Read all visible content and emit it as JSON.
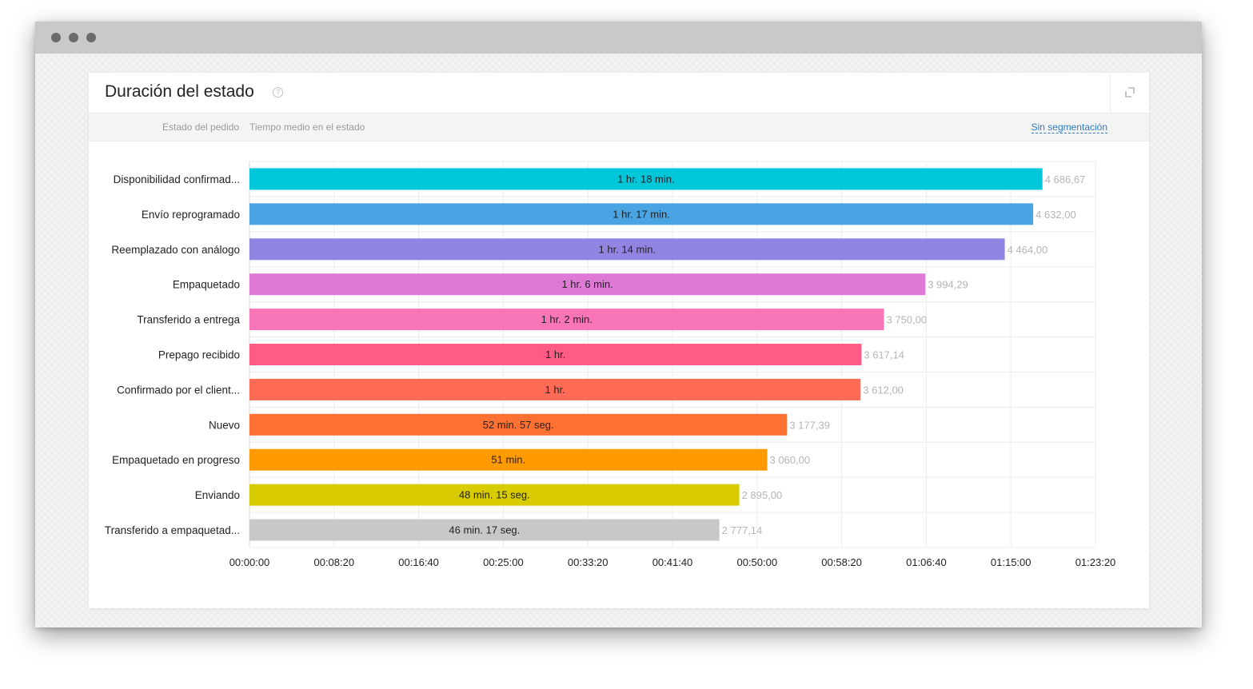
{
  "card": {
    "title": "Duración del estado",
    "help_glyph": "?",
    "filter_dimension": "Estado del pedido",
    "filter_metric": "Tiempo medio en el estado",
    "segmentation_link": "Sin segmentación"
  },
  "icons": {
    "help": "question-circle-icon",
    "expand": "expand-icon"
  },
  "chart_data": {
    "type": "bar",
    "orientation": "horizontal",
    "title": "",
    "xlabel": "",
    "ylabel": "",
    "xlim": [
      0,
      5000
    ],
    "grid": true,
    "categories": [
      "Disponibilidad confirmad...",
      "Envío reprogramado",
      "Reemplazado con análogo",
      "Empaquetado",
      "Transferido a entrega",
      "Prepago recibido",
      "Confirmado por el client...",
      "Nuevo",
      "Empaquetado en progreso",
      "Enviando",
      "Transferido a empaquetad..."
    ],
    "values": [
      4686.67,
      4632.0,
      4464.0,
      3994.29,
      3750.0,
      3617.14,
      3612.0,
      3177.39,
      3060.0,
      2895.0,
      2777.14
    ],
    "value_labels": [
      "4 686,67",
      "4 632,00",
      "4 464,00",
      "3 994,29",
      "3 750,00",
      "3 617,14",
      "3 612,00",
      "3 177,39",
      "3 060,00",
      "2 895,00",
      "2 777,14"
    ],
    "bar_labels": [
      "1 hr. 18 min.",
      "1 hr. 17 min.",
      "1 hr. 14 min.",
      "1 hr. 6 min.",
      "1 hr. 2 min.",
      "1 hr.",
      "1 hr.",
      "52 min. 57 seg.",
      "51 min.",
      "48 min. 15 seg.",
      "46 min. 17 seg."
    ],
    "colors": [
      "#00c6da",
      "#4aa3e2",
      "#9085e3",
      "#de79d6",
      "#f876b8",
      "#ff5b85",
      "#ff6b55",
      "#ff7132",
      "#ff9a00",
      "#d8cc00",
      "#c8c8c8"
    ],
    "x_ticks": [
      0,
      500,
      1000,
      1500,
      2000,
      2500,
      3000,
      3500,
      4000,
      4500,
      5000
    ],
    "x_tick_labels": [
      "00:00:00",
      "00:08:20",
      "00:16:40",
      "00:25:00",
      "00:33:20",
      "00:41:40",
      "00:50:00",
      "00:58:20",
      "01:06:40",
      "01:15:00",
      "01:23:20"
    ]
  }
}
